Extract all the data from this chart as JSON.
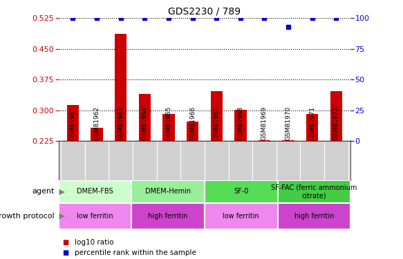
{
  "title": "GDS2230 / 789",
  "samples": [
    "GSM81961",
    "GSM81962",
    "GSM81963",
    "GSM81964",
    "GSM81965",
    "GSM81966",
    "GSM81967",
    "GSM81968",
    "GSM81969",
    "GSM81970",
    "GSM81971",
    "GSM81972"
  ],
  "log10_ratio": [
    0.313,
    0.257,
    0.487,
    0.34,
    0.291,
    0.272,
    0.347,
    0.301,
    0.228,
    0.228,
    0.291,
    0.347
  ],
  "percentile": [
    100,
    100,
    100,
    100,
    100,
    100,
    100,
    100,
    100,
    93,
    100,
    100
  ],
  "ylim_left": [
    0.225,
    0.525
  ],
  "ylim_right": [
    0,
    100
  ],
  "yticks_left": [
    0.225,
    0.3,
    0.375,
    0.45,
    0.525
  ],
  "yticks_right": [
    0,
    25,
    50,
    75,
    100
  ],
  "bar_color": "#cc0000",
  "dot_color": "#0000cc",
  "agent_groups": [
    {
      "label": "DMEM-FBS",
      "start": 0,
      "end": 2,
      "color": "#ccffcc"
    },
    {
      "label": "DMEM-Hemin",
      "start": 3,
      "end": 5,
      "color": "#99ee99"
    },
    {
      "label": "SF-0",
      "start": 6,
      "end": 8,
      "color": "#55dd55"
    },
    {
      "label": "SF-FAC (ferric ammonium\ncitrate)",
      "start": 9,
      "end": 11,
      "color": "#44cc44"
    }
  ],
  "protocol_groups": [
    {
      "label": "low ferritin",
      "start": 0,
      "end": 2,
      "color": "#ee88ee"
    },
    {
      "label": "high ferritin",
      "start": 3,
      "end": 5,
      "color": "#cc44cc"
    },
    {
      "label": "low ferritin",
      "start": 6,
      "end": 8,
      "color": "#ee88ee"
    },
    {
      "label": "high ferritin",
      "start": 9,
      "end": 11,
      "color": "#cc44cc"
    }
  ],
  "legend_items": [
    {
      "label": "log10 ratio",
      "color": "#cc0000"
    },
    {
      "label": "percentile rank within the sample",
      "color": "#0000cc"
    }
  ],
  "tick_label_color_left": "#cc0000",
  "tick_label_color_right": "#0000cc",
  "xtick_bg_color": "#d0d0d0",
  "fig_width": 5.83,
  "fig_height": 3.75,
  "dpi": 100
}
